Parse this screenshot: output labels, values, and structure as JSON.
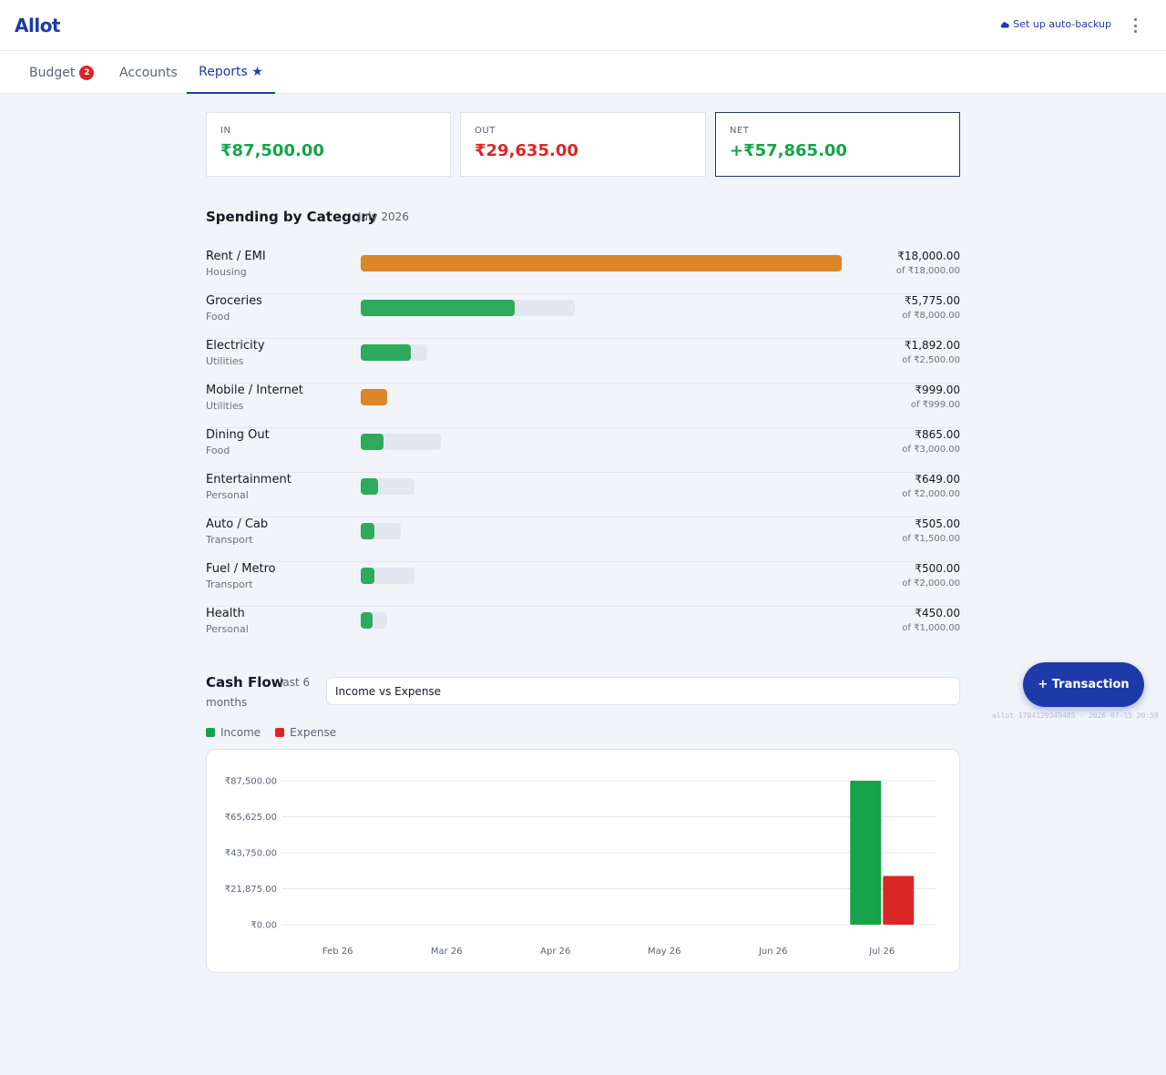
{
  "app": {
    "title": "Allot",
    "backup_label": "Set up auto-backup"
  },
  "tabs": [
    {
      "label": "Budget",
      "badge": "2"
    },
    {
      "label": "Accounts"
    },
    {
      "label": "Reports ★"
    }
  ],
  "kpis": [
    {
      "label": "IN",
      "value": "₹87,500.00",
      "color": "#16a34a"
    },
    {
      "label": "OUT",
      "value": "₹29,635.00",
      "color": "#dc2626"
    },
    {
      "label": "NET",
      "value": "+₹57,865.00",
      "color": "#16a34a"
    }
  ],
  "spending": {
    "title": "Spending by Category",
    "period": "July 2026",
    "categories": [
      {
        "name": "Rent / EMI",
        "group": "Housing",
        "amount": "₹18,000.00",
        "of": "of ₹18,000.00",
        "spent": 18000,
        "budget": 18000,
        "color": "#dd8628"
      },
      {
        "name": "Groceries",
        "group": "Food",
        "amount": "₹5,775.00",
        "of": "of ₹8,000.00",
        "spent": 5775,
        "budget": 8000,
        "color": "#2eaa5c"
      },
      {
        "name": "Electricity",
        "group": "Utilities",
        "amount": "₹1,892.00",
        "of": "of ₹2,500.00",
        "spent": 1892,
        "budget": 2500,
        "color": "#2eaa5c"
      },
      {
        "name": "Mobile / Internet",
        "group": "Utilities",
        "amount": "₹999.00",
        "of": "of ₹999.00",
        "spent": 999,
        "budget": 999,
        "color": "#dd8628"
      },
      {
        "name": "Dining Out",
        "group": "Food",
        "amount": "₹865.00",
        "of": "of ₹3,000.00",
        "spent": 865,
        "budget": 3000,
        "color": "#2eaa5c"
      },
      {
        "name": "Entertainment",
        "group": "Personal",
        "amount": "₹649.00",
        "of": "of ₹2,000.00",
        "spent": 649,
        "budget": 2000,
        "color": "#2eaa5c"
      },
      {
        "name": "Auto / Cab",
        "group": "Transport",
        "amount": "₹505.00",
        "of": "of ₹1,500.00",
        "spent": 505,
        "budget": 1500,
        "color": "#2eaa5c"
      },
      {
        "name": "Fuel / Metro",
        "group": "Transport",
        "amount": "₹500.00",
        "of": "of ₹2,000.00",
        "spent": 500,
        "budget": 2000,
        "color": "#2eaa5c"
      },
      {
        "name": "Health",
        "group": "Personal",
        "amount": "₹450.00",
        "of": "of ₹1,000.00",
        "spent": 450,
        "budget": 1000,
        "color": "#2eaa5c"
      }
    ]
  },
  "cashflow": {
    "title": "Cash Flow",
    "subtitle_1": "last 6",
    "subtitle_2": "months",
    "select_value": "Income vs Expense",
    "legend": [
      {
        "label": "Income",
        "color": "#16a34a"
      },
      {
        "label": "Expense",
        "color": "#dc2626"
      }
    ]
  },
  "fab_label": "+ Transaction",
  "build_info": "allot-1784129349485 · 2026-07-15 20:59",
  "chart_data": {
    "type": "bar",
    "categories": [
      "Feb 26",
      "Mar 26",
      "Apr 26",
      "May 26",
      "Jun 26",
      "Jul 26"
    ],
    "series": [
      {
        "name": "Income",
        "values": [
          0,
          0,
          0,
          0,
          0,
          87500
        ],
        "color": "#16a34a"
      },
      {
        "name": "Expense",
        "values": [
          0,
          0,
          0,
          0,
          0,
          29635
        ],
        "color": "#dc2626"
      }
    ],
    "yticks": [
      0,
      21875,
      43750,
      65625,
      87500
    ],
    "ytick_labels": [
      "₹0.00",
      "₹21,875.00",
      "₹43,750.00",
      "₹65,625.00",
      "₹87,500.00"
    ],
    "ylim": [
      0,
      87500
    ],
    "grid": true,
    "legend": "top-left"
  }
}
